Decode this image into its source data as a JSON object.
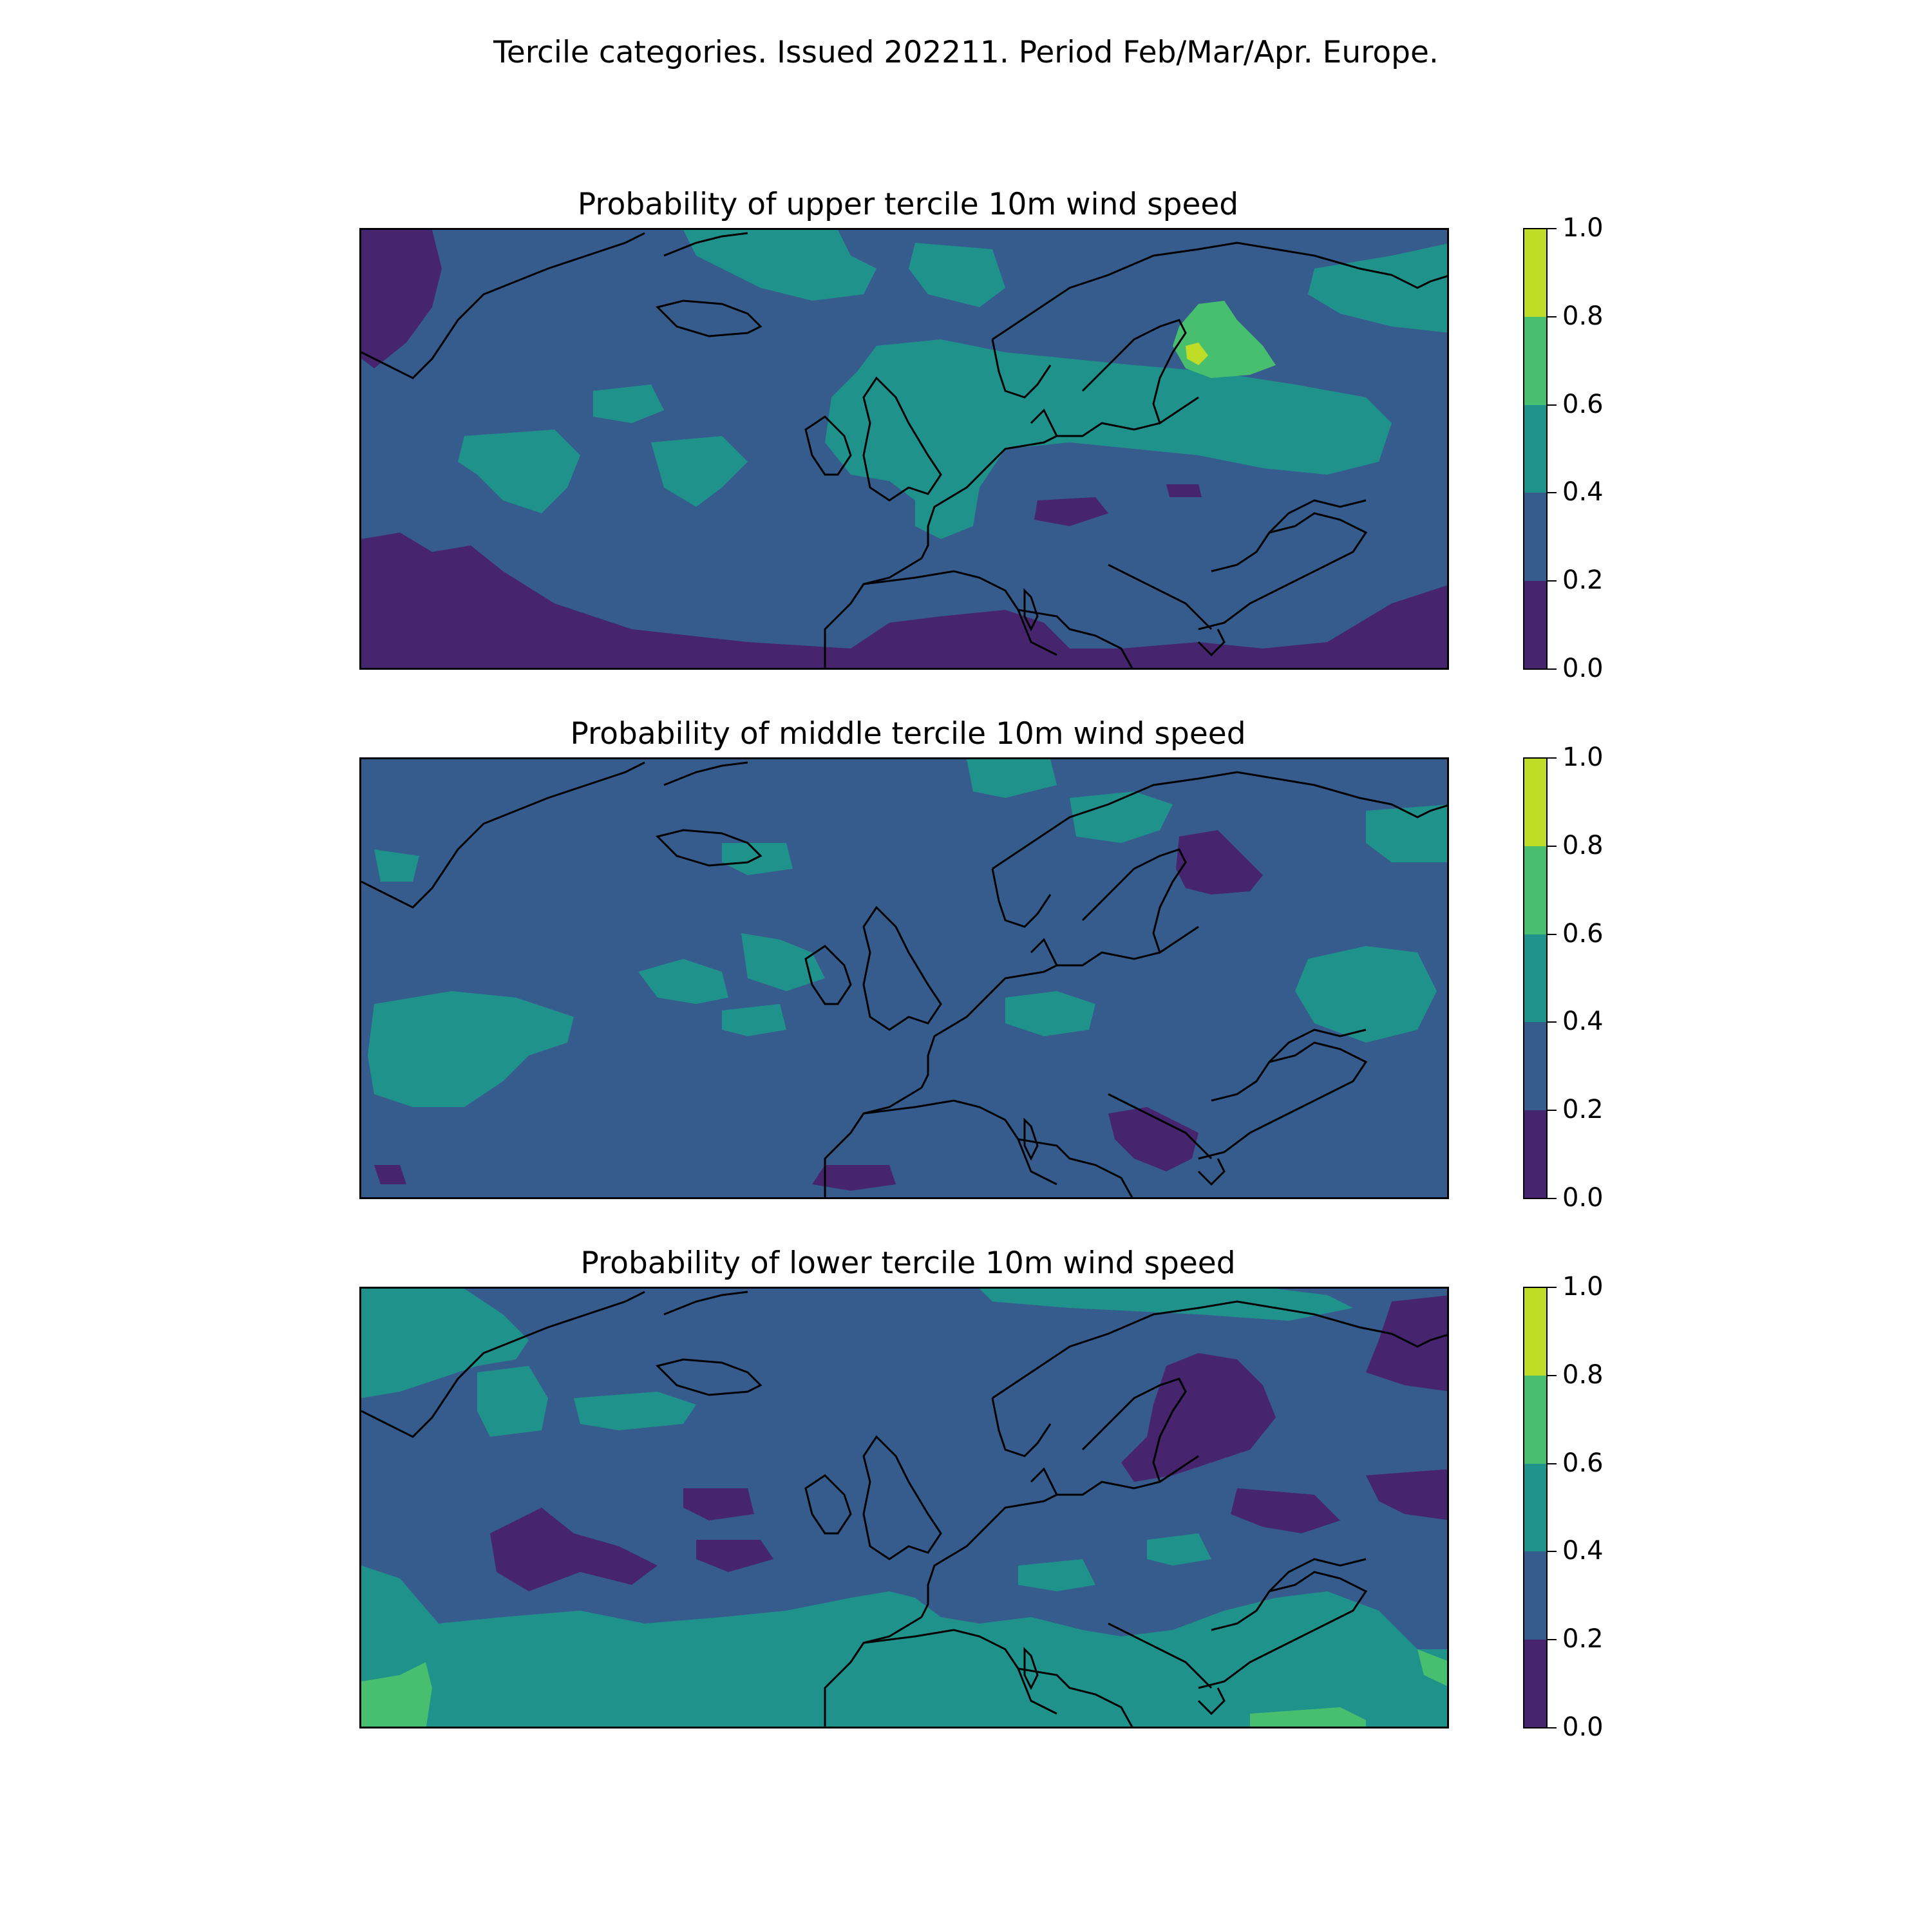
{
  "figure": {
    "suptitle": "Tercile categories. Issued 202211. Period Feb/Mar/Apr. Europe."
  },
  "colorbar": {
    "ticks": [
      "0.0",
      "0.2",
      "0.4",
      "0.6",
      "0.8",
      "1.0"
    ],
    "levels": [
      {
        "from": 0.0,
        "to": 0.2,
        "color": "#46246e"
      },
      {
        "from": 0.2,
        "to": 0.4,
        "color": "#365c8d"
      },
      {
        "from": 0.4,
        "to": 0.6,
        "color": "#20928c"
      },
      {
        "from": 0.6,
        "to": 0.8,
        "color": "#48bf6f"
      },
      {
        "from": 0.8,
        "to": 1.0,
        "color": "#bfdc26"
      }
    ]
  },
  "panels": [
    {
      "title": "Probability of upper tercile 10m wind speed",
      "dominant_level": "0.2-0.4"
    },
    {
      "title": "Probability of middle tercile 10m wind speed",
      "dominant_level": "0.2-0.4"
    },
    {
      "title": "Probability of lower tercile 10m wind speed",
      "dominant_level": "0.2-0.4"
    }
  ],
  "map": {
    "region": "Europe",
    "coastline_color": "#000000"
  }
}
